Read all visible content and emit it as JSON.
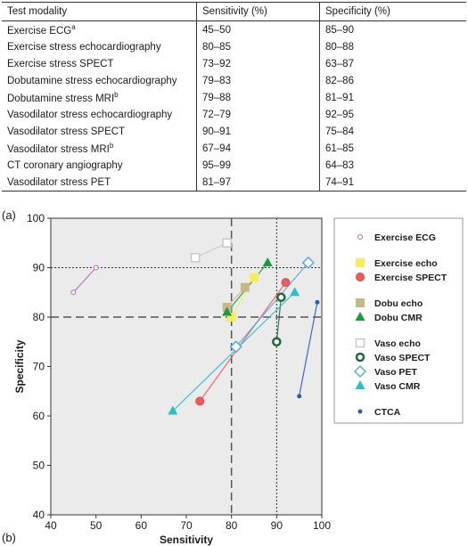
{
  "table": {
    "headers": [
      "Test modality",
      "Sensitivity (%)",
      "Specificity (%)"
    ],
    "rows": [
      {
        "modality": "Exercise ECG",
        "sup": "a",
        "sens": "45–50",
        "spec": "85–90"
      },
      {
        "modality": "Exercise stress echocardiography",
        "sup": "",
        "sens": "80–85",
        "spec": "80–88"
      },
      {
        "modality": "Exercise stress SPECT",
        "sup": "",
        "sens": "73–92",
        "spec": "63–87"
      },
      {
        "modality": "Dobutamine stress echocardiography",
        "sup": "",
        "sens": "79–83",
        "spec": "82–86"
      },
      {
        "modality": "Dobutamine stress MRI",
        "sup": "b",
        "sens": "79–88",
        "spec": "81–91"
      },
      {
        "modality": "Vasodilator stress echocardiography",
        "sup": "",
        "sens": "72–79",
        "spec": "92–95"
      },
      {
        "modality": "Vasodilator stress SPECT",
        "sup": "",
        "sens": "90–91",
        "spec": "75–84"
      },
      {
        "modality": "Vasodilator stress MRI",
        "sup": "b",
        "sens": "67–94",
        "spec": "61–85"
      },
      {
        "modality": "CT coronary angiography",
        "sup": "",
        "sens": "95–99",
        "spec": "64–83"
      },
      {
        "modality": "Vasodilator stress PET",
        "sup": "",
        "sens": "81–97",
        "spec": "74–91"
      }
    ]
  },
  "panels": {
    "a": "(a)",
    "b": "(b)"
  },
  "chart_data": {
    "type": "scatter",
    "xlabel": "Sensitivity",
    "ylabel": "Specificity",
    "xlim": [
      40,
      100
    ],
    "ylim": [
      40,
      100
    ],
    "xticks": [
      40,
      50,
      60,
      70,
      80,
      90,
      100
    ],
    "yticks": [
      40,
      50,
      60,
      70,
      80,
      90,
      100
    ],
    "grid": false,
    "background": "#ebebeb",
    "reference_lines": [
      {
        "axis": "x",
        "value": 80,
        "style": "dashed"
      },
      {
        "axis": "x",
        "value": 90,
        "style": "dotted"
      },
      {
        "axis": "y",
        "value": 80,
        "style": "dashed"
      },
      {
        "axis": "y",
        "value": 90,
        "style": "dotted"
      }
    ],
    "legend_position": "right",
    "series": [
      {
        "name": "Exercise ECG",
        "marker": "circle-open-small",
        "color": "#b06ab3",
        "points": [
          [
            45,
            85
          ],
          [
            50,
            90
          ]
        ]
      },
      {
        "name": "Exercise echo",
        "marker": "square-filled",
        "color": "#f4ee5a",
        "points": [
          [
            80,
            80
          ],
          [
            85,
            88
          ]
        ]
      },
      {
        "name": "Exercise SPECT",
        "marker": "circle-filled",
        "color": "#f05a5a",
        "points": [
          [
            73,
            63
          ],
          [
            92,
            87
          ]
        ]
      },
      {
        "name": "Dobu echo",
        "marker": "square-filled",
        "color": "#c7b985",
        "points": [
          [
            79,
            82
          ],
          [
            83,
            86
          ]
        ]
      },
      {
        "name": "Dobu CMR",
        "marker": "triangle-filled",
        "color": "#1a9a41",
        "points": [
          [
            79,
            81
          ],
          [
            88,
            91
          ]
        ]
      },
      {
        "name": "Vaso echo",
        "marker": "square-open",
        "color": "#c8c8c8",
        "points": [
          [
            72,
            92
          ],
          [
            79,
            95
          ]
        ]
      },
      {
        "name": "Vaso SPECT",
        "marker": "circle-open-thick",
        "color": "#1e6b3a",
        "points": [
          [
            90,
            75
          ],
          [
            91,
            84
          ]
        ]
      },
      {
        "name": "Vaso PET",
        "marker": "diamond-open",
        "color": "#5aa8e0",
        "points": [
          [
            81,
            74
          ],
          [
            97,
            91
          ]
        ]
      },
      {
        "name": "Vaso CMR",
        "marker": "triangle-filled",
        "color": "#26c1c9",
        "points": [
          [
            67,
            61
          ],
          [
            94,
            85
          ]
        ]
      },
      {
        "name": "CTCA",
        "marker": "circle-filled-small",
        "color": "#2a5fb0",
        "points": [
          [
            95,
            64
          ],
          [
            99,
            83
          ]
        ]
      }
    ],
    "legend_groups": [
      [
        0
      ],
      [
        1,
        2
      ],
      [
        3,
        4
      ],
      [
        5,
        6,
        7,
        8
      ],
      [
        9
      ]
    ]
  }
}
